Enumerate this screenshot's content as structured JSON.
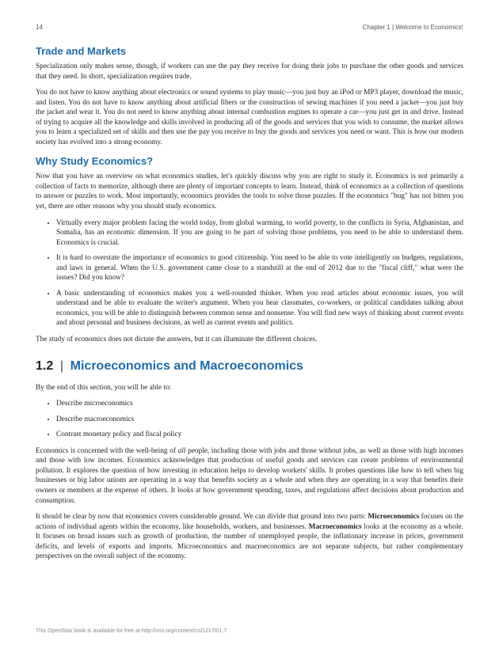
{
  "header": {
    "page_num": "14",
    "chapter": "Chapter 1 | Welcome to Economics!"
  },
  "sections": {
    "s1_title": "Trade and Markets",
    "s1_p1": "Specialization only makes sense, though, if workers can use the pay they receive for doing their jobs to purchase the other goods and services that they need. In short, specialization requires trade.",
    "s1_p2": "You do not have to know anything about electronics or sound systems to play music—you just buy an iPod or MP3 player, download the music, and listen. You do not have to know anything about artificial fibers or the construction of sewing machines if you need a jacket—you just buy the jacket and wear it. You do not need to know anything about internal combustion engines to operate a car—you just get in and drive. Instead of trying to acquire all the knowledge and skills involved in producing all of the goods and services that you wish to consume, the market allows you to learn a specialized set of skills and then use the pay you receive to buy the goods and services you need or want. This is how our modern society has evolved into a strong economy.",
    "s2_title": "Why Study Economics?",
    "s2_p1": "Now that you have an overview on what economics studies, let's quickly discuss why you are right to study it. Economics is not primarily a collection of facts to memorize, although there are plenty of important concepts to learn. Instead, think of economics as a collection of questions to answer or puzzles to work. Most importantly, economics provides the tools to solve those puzzles. If the economics \"bug\" has not bitten you yet, there are other reasons why you should study economics.",
    "s2_li1": "Virtually every major problem facing the world today, from global warming, to world poverty, to the conflicts in Syria, Afghanistan, and Somalia, has an economic dimension. If you are going to be part of solving those problems, you need to be able to understand them. Economics is crucial.",
    "s2_li2": "It is hard to overstate the importance of economics to good citizenship. You need to be able to vote intelligently on budgets, regulations, and laws in general. When the U.S. government came close to a standstill at the end of 2012 due to the \"fiscal cliff,\" what were the issues? Did you know?",
    "s2_li3": "A basic understanding of economics makes you a well-rounded thinker. When you read articles about economic issues, you will understand and be able to evaluate the writer's argument. When you hear classmates, co-workers, or political candidates talking about economics, you will be able to distinguish between common sense and nonsense. You will find new ways of thinking about current events and about personal and business decisions, as well as current events and politics.",
    "s2_p_end": "The study of economics does not dictate the answers, but it can illuminate the different choices.",
    "section_num": "1.2",
    "section_sep": "|",
    "section_title": "Microeconomics and Macroeconomics",
    "obj_intro": "By the end of this section, you will be able to:",
    "obj_1": "Describe microeconomics",
    "obj_2": "Describe macroeconomics",
    "obj_3": "Contrast monetary policy and fiscal policy",
    "s3_p1_a": "Economics is concerned with the well-being of ",
    "s3_p1_em": "all",
    "s3_p1_b": " people, including those with jobs and those without jobs, as well as those with high incomes and those with low incomes. Economics acknowledges that production of useful goods and services can create problems of environmental pollution. It explores the question of how investing in education helps to develop workers' skills. It probes questions like how to tell when big businesses or big labor unions are operating in a way that benefits society as a whole and when they are operating in a way that benefits their owners or members at the expense of others. It looks at how government spending, taxes, and regulations affect decisions about production and consumption.",
    "s3_p2_a": "It should be clear by now that economics covers considerable ground. We can divide that ground into two parts: ",
    "s3_p2_b1": "Microeconomics",
    "s3_p2_b": " focuses on the actions of individual agents within the economy, like households, workers, and businesses. ",
    "s3_p2_b2": "Macroeconomics",
    "s3_p2_c": " looks at the economy as a whole. It focuses on broad issues such as growth of production, the number of unemployed people, the inflationary increase in prices, government deficits, and levels of exports and imports. Microeconomics and macroeconomics are not separate subjects, but rather complementary perspectives on the overall subject of the economy."
  },
  "footer": "This OpenStax book is available for free at http://cnx.org/content/col12170/1.7",
  "colors": {
    "heading": "#1f6aa5",
    "text": "#222222",
    "muted": "#888888"
  }
}
